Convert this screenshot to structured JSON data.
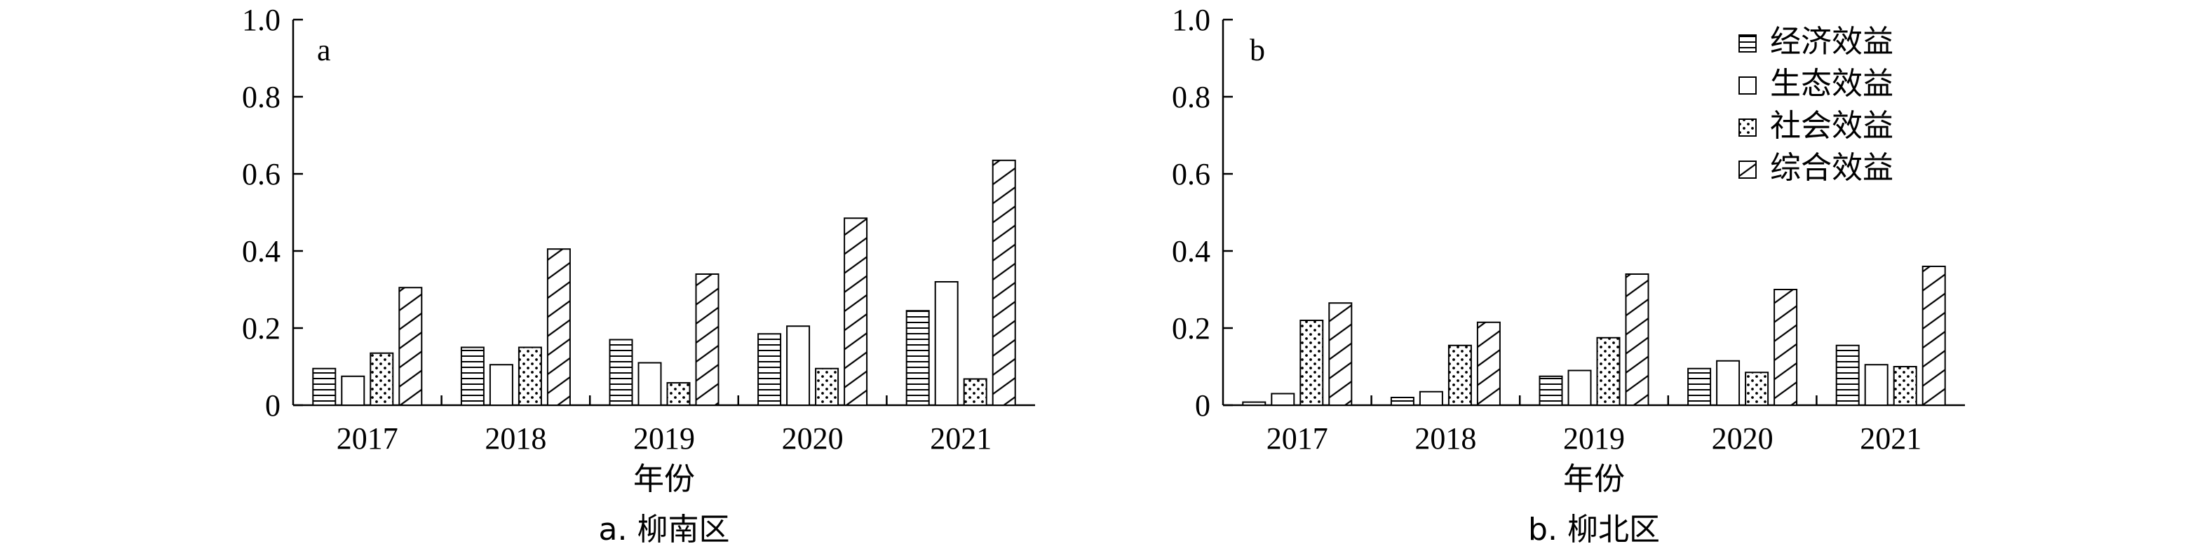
{
  "chart_data": [
    {
      "type": "bar",
      "panel_label": "a",
      "caption": "a. 柳南区",
      "xlabel": "年份",
      "ylabel": "",
      "ylim": [
        0,
        1.0
      ],
      "yticks": [
        "0",
        "0.2",
        "0.4",
        "0.6",
        "0.8",
        "1.0"
      ],
      "categories": [
        "2017",
        "2018",
        "2019",
        "2020",
        "2021"
      ],
      "series": [
        {
          "name": "经济效益",
          "values": [
            0.095,
            0.15,
            0.17,
            0.185,
            0.245
          ]
        },
        {
          "name": "生态效益",
          "values": [
            0.075,
            0.105,
            0.11,
            0.205,
            0.32
          ]
        },
        {
          "name": "社会效益",
          "values": [
            0.135,
            0.15,
            0.058,
            0.095,
            0.068
          ]
        },
        {
          "name": "综合效益",
          "values": [
            0.305,
            0.405,
            0.34,
            0.485,
            0.635
          ]
        }
      ],
      "legend": false
    },
    {
      "type": "bar",
      "panel_label": "b",
      "caption": "b. 柳北区",
      "xlabel": "年份",
      "ylabel": "",
      "ylim": [
        0,
        1.0
      ],
      "yticks": [
        "0",
        "0.2",
        "0.4",
        "0.6",
        "0.8",
        "1.0"
      ],
      "categories": [
        "2017",
        "2018",
        "2019",
        "2020",
        "2021"
      ],
      "series": [
        {
          "name": "经济效益",
          "values": [
            0.008,
            0.02,
            0.075,
            0.095,
            0.155
          ]
        },
        {
          "name": "生态效益",
          "values": [
            0.03,
            0.035,
            0.09,
            0.115,
            0.105
          ]
        },
        {
          "name": "社会效益",
          "values": [
            0.22,
            0.155,
            0.175,
            0.085,
            0.1
          ]
        },
        {
          "name": "综合效益",
          "values": [
            0.265,
            0.215,
            0.34,
            0.3,
            0.36
          ]
        }
      ],
      "legend": true,
      "legend_position": "top-right"
    }
  ]
}
